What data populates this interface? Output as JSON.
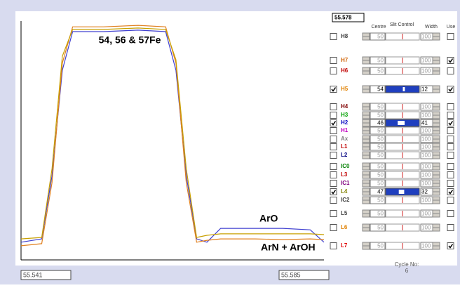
{
  "readout": "55.578",
  "headers": {
    "centre": "Centre",
    "slit": "Slit Control",
    "width": "Width",
    "use": "Use"
  },
  "rows": [
    {
      "label": "H8",
      "color": "#404040",
      "selected": false,
      "centre": 50,
      "width": 100,
      "use": false
    },
    {
      "label": "H7",
      "color": "#d06000",
      "selected": false,
      "centre": 50,
      "width": 100,
      "use": true
    },
    {
      "label": "H6",
      "color": "#c00000",
      "selected": false,
      "centre": 50,
      "width": 100,
      "use": false
    },
    {
      "label": "H5",
      "color": "#e08000",
      "selected": true,
      "centre": 54,
      "width": 12,
      "use": true
    },
    {
      "label": "H4",
      "color": "#800000",
      "selected": false,
      "centre": 50,
      "width": 100,
      "use": false
    },
    {
      "label": "H3",
      "color": "#00a000",
      "selected": false,
      "centre": 50,
      "width": 100,
      "use": false
    },
    {
      "label": "H2",
      "color": "#0000c0",
      "selected": true,
      "centre": 46,
      "width": 41,
      "use": true
    },
    {
      "label": "H1",
      "color": "#c000c0",
      "selected": false,
      "centre": 50,
      "width": 100,
      "use": false
    },
    {
      "label": "Ax",
      "color": "#808080",
      "selected": false,
      "centre": 50,
      "width": 100,
      "use": false
    },
    {
      "label": "L1",
      "color": "#c00000",
      "selected": false,
      "centre": 50,
      "width": 100,
      "use": false
    },
    {
      "label": "L2",
      "color": "#000080",
      "selected": false,
      "centre": 50,
      "width": 100,
      "use": false
    },
    {
      "label": "IC0",
      "color": "#008000",
      "selected": false,
      "centre": 50,
      "width": 100,
      "use": false
    },
    {
      "label": "L3",
      "color": "#c00000",
      "selected": false,
      "centre": 50,
      "width": 100,
      "use": false
    },
    {
      "label": "IC1",
      "color": "#800080",
      "selected": false,
      "centre": 50,
      "width": 100,
      "use": false
    },
    {
      "label": "L4",
      "color": "#808000",
      "selected": true,
      "centre": 47,
      "width": 32,
      "use": true
    },
    {
      "label": "IC2",
      "color": "#404040",
      "selected": false,
      "centre": 50,
      "width": 100,
      "use": false
    },
    {
      "label": "L5",
      "color": "#404040",
      "selected": false,
      "centre": 50,
      "width": 100,
      "use": false
    },
    {
      "label": "L6",
      "color": "#e08000",
      "selected": false,
      "centre": 50,
      "width": 100,
      "use": false
    },
    {
      "label": "L7",
      "color": "#e00000",
      "selected": false,
      "centre": 50,
      "width": 100,
      "use": true
    }
  ],
  "chart": {
    "xlim": [
      55.541,
      55.585
    ],
    "ylim": [
      0,
      100
    ],
    "annotations": [
      "54, 56 & 57Fe",
      "ArO",
      "ArN + ArOH"
    ],
    "x": [
      55.541,
      55.544,
      55.5455,
      55.547,
      55.5485,
      55.553,
      55.558,
      55.562,
      55.5635,
      55.565,
      55.5665,
      55.568,
      55.57,
      55.575,
      55.579,
      55.583,
      55.585
    ],
    "traces": [
      {
        "color": "#4040d0",
        "values": [
          7.4,
          8.8,
          35.3,
          79.4,
          95.6,
          95.6,
          96.2,
          95.6,
          79.4,
          35.3,
          8.8,
          7.4,
          13.2,
          13.2,
          13.2,
          12.6,
          7.4
        ]
      },
      {
        "color": "#e08020",
        "values": [
          5.9,
          6.8,
          32.4,
          82.4,
          97.6,
          97.6,
          98.2,
          97.6,
          82.4,
          32.4,
          7.4,
          8.2,
          8.8,
          8.8,
          8.5,
          8.8,
          8.5
        ]
      },
      {
        "color": "#c8a000",
        "values": [
          8.8,
          9.4,
          38.2,
          85.3,
          96.5,
          96.5,
          97.1,
          96.5,
          83.8,
          38.2,
          9.4,
          10.3,
          10.9,
          10.9,
          10.9,
          10.9,
          10.6
        ]
      }
    ]
  },
  "cycle": {
    "label": "Cycle No:",
    "value": 6
  }
}
